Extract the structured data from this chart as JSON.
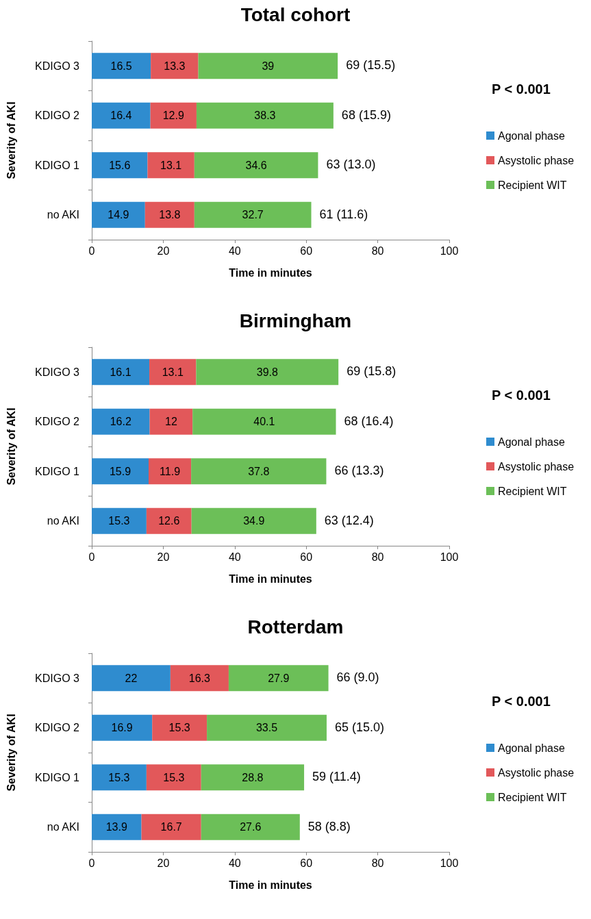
{
  "chart_data": [
    {
      "type": "bar",
      "orientation": "horizontal",
      "stacked": true,
      "title": "Total cohort",
      "xlabel": "Time in minutes",
      "ylabel": "Severity of AKI",
      "categories": [
        "KDIGO 3",
        "KDIGO 2",
        "KDIGO 1",
        "no AKI"
      ],
      "series": [
        {
          "name": "Agonal phase",
          "color": "#2f8ccf",
          "values": [
            16.5,
            16.4,
            15.6,
            14.9
          ]
        },
        {
          "name": "Asystolic phase",
          "color": "#e2585a",
          "values": [
            13.3,
            12.9,
            13.1,
            13.8
          ]
        },
        {
          "name": "Recipient WIT",
          "color": "#6cbf58",
          "values": [
            39,
            38.3,
            34.6,
            32.7
          ]
        }
      ],
      "totals": [
        "69 (15.5)",
        "68 (15.9)",
        "63 (13.0)",
        "61 (11.6)"
      ],
      "annotations": [
        "P < 0.001"
      ],
      "data_labels": true,
      "xlim": [
        0,
        100
      ],
      "xticks": [
        0,
        20,
        40,
        60,
        80,
        100
      ],
      "grid": false,
      "legend": "right"
    },
    {
      "type": "bar",
      "orientation": "horizontal",
      "stacked": true,
      "title": "Birmingham",
      "xlabel": "Time in minutes",
      "ylabel": "Severity of AKI",
      "categories": [
        "KDIGO 3",
        "KDIGO 2",
        "KDIGO 1",
        "no AKI"
      ],
      "series": [
        {
          "name": "Agonal phase",
          "color": "#2f8ccf",
          "values": [
            16.1,
            16.2,
            15.9,
            15.3
          ]
        },
        {
          "name": "Asystolic phase",
          "color": "#e2585a",
          "values": [
            13.1,
            12,
            11.9,
            12.6
          ]
        },
        {
          "name": "Recipient WIT",
          "color": "#6cbf58",
          "values": [
            39.8,
            40.1,
            37.8,
            34.9
          ]
        }
      ],
      "totals": [
        "69 (15.8)",
        "68 (16.4)",
        "66 (13.3)",
        "63 (12.4)"
      ],
      "annotations": [
        "P < 0.001"
      ],
      "data_labels": true,
      "xlim": [
        0,
        100
      ],
      "xticks": [
        0,
        20,
        40,
        60,
        80,
        100
      ],
      "grid": false,
      "legend": "right"
    },
    {
      "type": "bar",
      "orientation": "horizontal",
      "stacked": true,
      "title": "Rotterdam",
      "xlabel": "Time in minutes",
      "ylabel": "Severity of AKI",
      "categories": [
        "KDIGO 3",
        "KDIGO 2",
        "KDIGO 1",
        "no AKI"
      ],
      "series": [
        {
          "name": "Agonal phase",
          "color": "#2f8ccf",
          "values": [
            22,
            16.9,
            15.3,
            13.9
          ]
        },
        {
          "name": "Asystolic phase",
          "color": "#e2585a",
          "values": [
            16.3,
            15.3,
            15.3,
            16.7
          ]
        },
        {
          "name": "Recipient WIT",
          "color": "#6cbf58",
          "values": [
            27.9,
            33.5,
            28.8,
            27.6
          ]
        }
      ],
      "totals": [
        "66 (9.0)",
        "65 (15.0)",
        "59 (11.4)",
        "58 (8.8)"
      ],
      "annotations": [
        "P < 0.001"
      ],
      "data_labels": true,
      "xlim": [
        0,
        100
      ],
      "xticks": [
        0,
        20,
        40,
        60,
        80,
        100
      ],
      "grid": false,
      "legend": "right"
    }
  ]
}
